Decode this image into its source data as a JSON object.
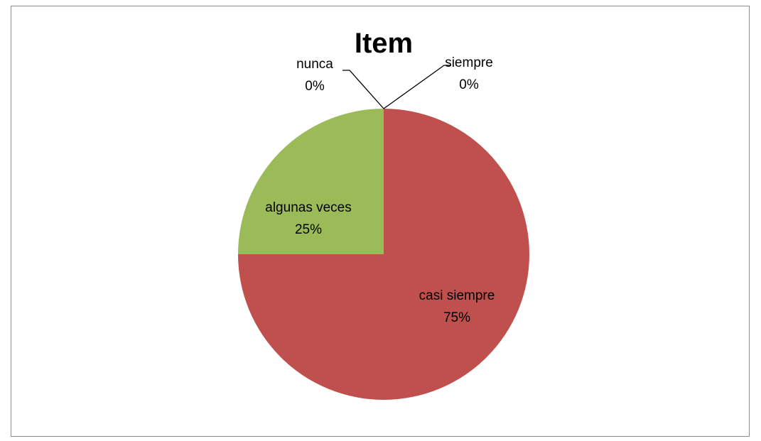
{
  "chart_data": {
    "type": "pie",
    "title": "Item",
    "slices": [
      {
        "name": "siempre",
        "value": 0,
        "label_pct": "0%",
        "color": "#4F81BD"
      },
      {
        "name": "casi siempre",
        "value": 75,
        "label_pct": "75%",
        "color": "#C0504D"
      },
      {
        "name": "algunas veces",
        "value": 25,
        "label_pct": "25%",
        "color": "#9BBB59"
      },
      {
        "name": "nunca",
        "value": 0,
        "label_pct": "0%",
        "color": "#8064A2"
      }
    ],
    "start_angle": "12 o'clock",
    "direction": "clockwise",
    "legend": "none"
  }
}
